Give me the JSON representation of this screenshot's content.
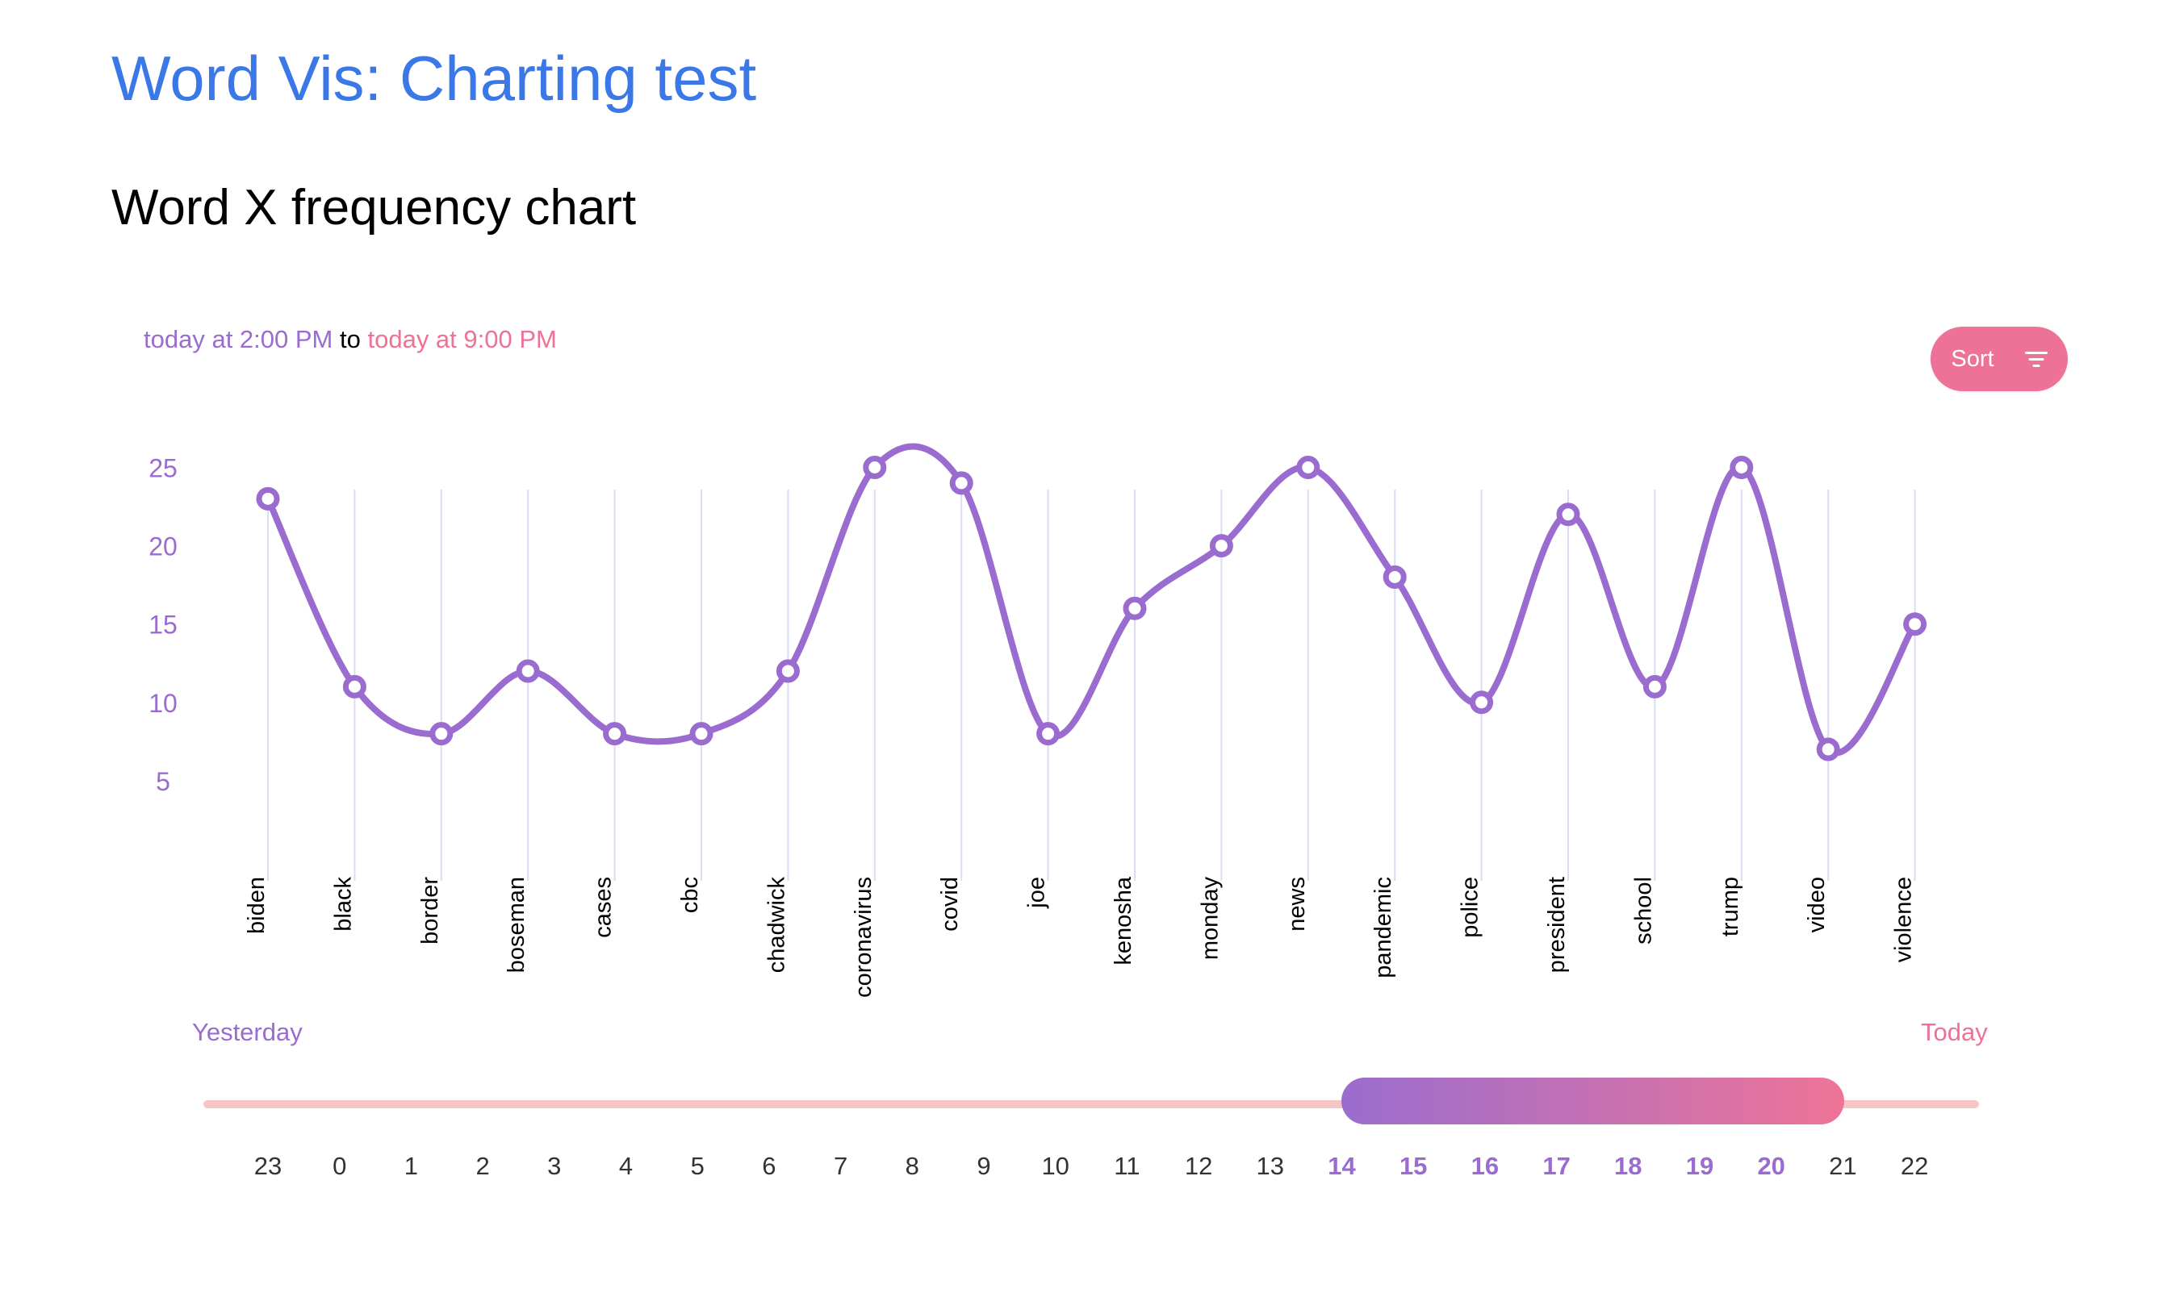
{
  "page": {
    "title": "Word Vis: Charting test",
    "subtitle": "Word X frequency chart"
  },
  "range": {
    "from": "today at 2:00 PM",
    "to_word": "to",
    "to": "today at 9:00 PM"
  },
  "sort_button": {
    "label": "Sort",
    "icon": "filter-list-icon"
  },
  "colors": {
    "title": "#3b78e7",
    "line": "#9b6ccf",
    "axis_label": "#9b6ccf",
    "accent_pink": "#ee7198",
    "gridline": "#dcdcf5",
    "track": "#f5c6c4"
  },
  "chart_data": {
    "type": "line",
    "smooth": true,
    "categories": [
      "biden",
      "black",
      "border",
      "boseman",
      "cases",
      "cbc",
      "chadwick",
      "coronavirus",
      "covid",
      "joe",
      "kenosha",
      "monday",
      "news",
      "pandemic",
      "police",
      "president",
      "school",
      "trump",
      "video",
      "violence"
    ],
    "values": [
      23,
      11,
      8,
      12,
      8,
      8,
      12,
      25,
      24,
      8,
      16,
      20,
      25,
      18,
      10,
      22,
      11,
      25,
      7,
      15
    ],
    "yticks": [
      5,
      10,
      15,
      20,
      25
    ],
    "ylim": [
      4,
      28
    ],
    "grid": "vertical",
    "title": "",
    "xlabel": "",
    "ylabel": ""
  },
  "slider": {
    "left_label": "Yesterday",
    "right_label": "Today",
    "hours": [
      "23",
      "0",
      "1",
      "2",
      "3",
      "4",
      "5",
      "6",
      "7",
      "8",
      "9",
      "10",
      "11",
      "12",
      "13",
      "14",
      "15",
      "16",
      "17",
      "18",
      "19",
      "20",
      "21",
      "22"
    ],
    "selected_start": "14",
    "selected_end": "20"
  }
}
